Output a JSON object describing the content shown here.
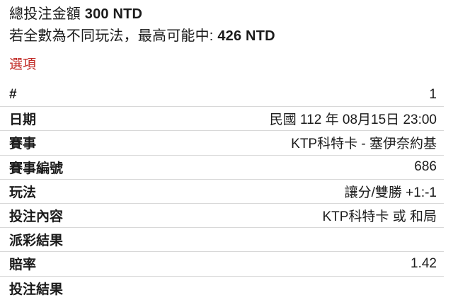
{
  "header": {
    "total_label": "總投注金額",
    "total_value": "300 NTD",
    "max_win_prefix": "若全數為不同玩法，最高可能中:",
    "max_win_value": "426 NTD"
  },
  "section": {
    "title": "選項"
  },
  "details": {
    "rows": [
      {
        "label": "#",
        "value": "1"
      },
      {
        "label": "日期",
        "value": "民國 112 年 08月15日 23:00"
      },
      {
        "label": "賽事",
        "value": "KTP科特卡 - 塞伊奈約基"
      },
      {
        "label": "賽事編號",
        "value": "686"
      },
      {
        "label": "玩法",
        "value": "讓分/雙勝 +1:-1"
      },
      {
        "label": "投注內容",
        "value": "KTP科特卡 或 和局"
      },
      {
        "label": "派彩結果",
        "value": ""
      },
      {
        "label": "賠率",
        "value": "1.42"
      },
      {
        "label": "投注結果",
        "value": ""
      }
    ]
  },
  "colors": {
    "accent_red": "#c22d28",
    "divider": "#d8d8d8",
    "text": "#1b1b1b",
    "background": "#ffffff"
  }
}
